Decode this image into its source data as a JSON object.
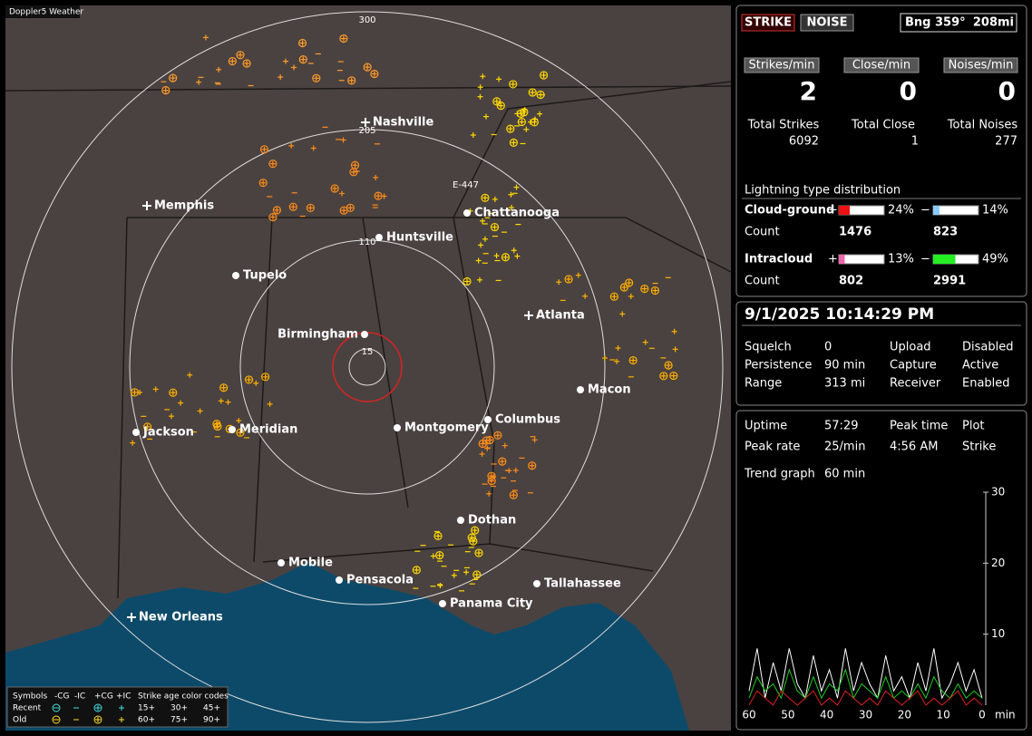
{
  "window": {
    "title": "Doppler5 Weather"
  },
  "map": {
    "range_labels": [
      "300",
      "205",
      "110",
      "15"
    ],
    "bearing_marker": "E-447",
    "cities": [
      "Nashville",
      "Memphis",
      "Chattanooga",
      "Huntsville",
      "Tupelo",
      "Birmingham",
      "Atlanta",
      "Macon",
      "Jackson",
      "Meridian",
      "Montgomery",
      "Columbus",
      "Dothan",
      "Mobile",
      "Pensacola",
      "Tallahassee",
      "Panama City",
      "New Orleans"
    ],
    "legend": {
      "header": [
        "Symbols",
        "-CG",
        "-IC",
        "+CG",
        "+IC",
        "Strike age color codes"
      ],
      "rows": [
        {
          "label": "Recent",
          "ages": [
            "15+",
            "30+",
            "45+"
          ]
        },
        {
          "label": "Old",
          "ages": [
            "60+",
            "75+",
            "90+"
          ]
        }
      ]
    }
  },
  "status": {
    "buttons": [
      "STRIKE",
      "NOISE"
    ],
    "bearing": "Bng 359°",
    "distance": "208mi"
  },
  "rates": [
    {
      "label": "Strikes/min",
      "value": 2
    },
    {
      "label": "Close/min",
      "value": 0
    },
    {
      "label": "Noises/min",
      "value": 0
    }
  ],
  "totals": [
    {
      "label": "Total Strikes",
      "value": 6092
    },
    {
      "label": "Total Close",
      "value": 1
    },
    {
      "label": "Total Noises",
      "value": 277
    }
  ],
  "distribution": {
    "title": "Lightning type distribution",
    "count_label": "Count",
    "signs": [
      "+",
      "−"
    ],
    "rows": [
      {
        "label": "Cloud-ground",
        "pos": 24,
        "pos_label": "24%",
        "neg": 14,
        "neg_label": "14%",
        "pos_count": 1476,
        "neg_count": 823
      },
      {
        "label": "Intracloud",
        "pos": 13,
        "pos_label": "13%",
        "neg": 49,
        "neg_label": "49%",
        "pos_count": 802,
        "neg_count": 2991
      }
    ]
  },
  "datetime": "9/1/2025 10:14:29 PM",
  "settings": [
    [
      "Squelch",
      "0",
      "Upload",
      "Disabled"
    ],
    [
      "Persistence",
      "90 min",
      "Capture",
      "Active"
    ],
    [
      "Range",
      "313 mi",
      "Receiver",
      "Enabled"
    ]
  ],
  "stats": [
    [
      "Uptime",
      "57:29",
      "Peak time",
      "Plot"
    ],
    [
      "Peak rate",
      "25/min",
      "4:56 AM",
      "Strike"
    ]
  ],
  "trend": {
    "label": "Trend graph",
    "window": "60 min",
    "ylim": [
      0,
      30
    ],
    "yticks": [
      10,
      20,
      30
    ],
    "xlim": [
      60,
      0
    ],
    "xticks": [
      60,
      50,
      40,
      30,
      20,
      10,
      0
    ],
    "x_unit": "min",
    "series": [
      {
        "color": "#ffffff",
        "values": [
          2,
          8,
          1,
          6,
          2,
          8,
          3,
          1,
          7,
          2,
          5,
          1,
          8,
          2,
          6,
          3,
          1,
          7,
          2,
          4,
          1,
          6,
          2,
          8,
          1,
          3,
          6,
          2,
          5,
          1
        ]
      },
      {
        "color": "#22cc22",
        "values": [
          1,
          4,
          2,
          3,
          1,
          5,
          2,
          1,
          4,
          1,
          3,
          2,
          5,
          1,
          3,
          2,
          1,
          4,
          1,
          2,
          1,
          3,
          1,
          4,
          2,
          1,
          3,
          1,
          2,
          1
        ]
      },
      {
        "color": "#dd2222",
        "values": [
          0,
          2,
          1,
          0,
          2,
          1,
          0,
          1,
          2,
          0,
          1,
          0,
          2,
          1,
          0,
          1,
          0,
          2,
          1,
          0,
          1,
          2,
          0,
          1,
          0,
          1,
          2,
          0,
          1,
          0
        ]
      }
    ]
  }
}
